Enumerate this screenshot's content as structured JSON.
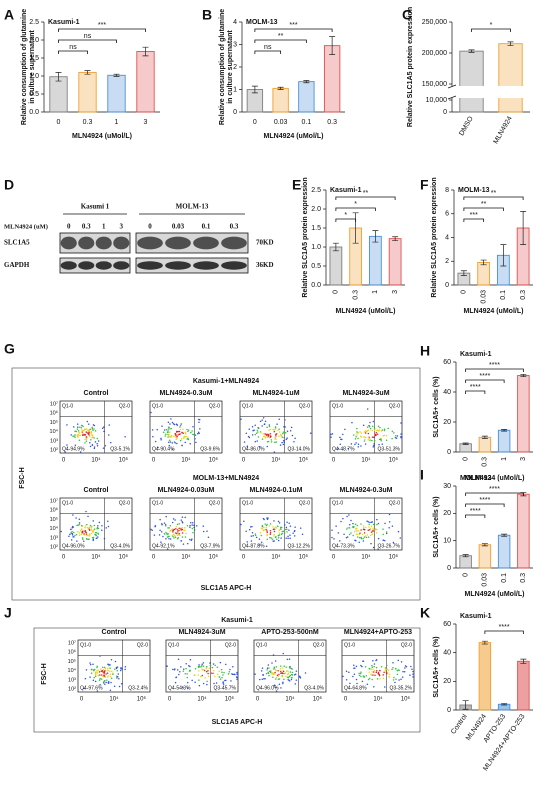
{
  "chart_data": [
    {
      "panel": "A",
      "type": "bar",
      "title": "Kasumi-1",
      "ylabel": [
        "Relative consumption of glutamine",
        "in culture supernatant"
      ],
      "xlabel": "MLN4924 (uMol/L)",
      "categories": [
        "0",
        "0.3",
        "1",
        "3"
      ],
      "values": [
        0.98,
        1.1,
        1.02,
        1.68
      ],
      "errors": [
        0.12,
        0.05,
        0.03,
        0.12
      ],
      "colors": [
        "#7f7f7f",
        "#f0a030",
        "#4a90d9",
        "#e05050"
      ],
      "ylim": [
        0,
        2.5
      ],
      "yticks": [
        {
          "value": 0,
          "label": "0.0"
        },
        0.5,
        {
          "value": 1,
          "label": "1.0"
        },
        1.5,
        {
          "value": 2,
          "label": "2.0"
        },
        2.5
      ],
      "significance": [
        "ns",
        "ns",
        "***"
      ]
    },
    {
      "panel": "B",
      "type": "bar",
      "title": "MOLM-13",
      "ylabel": [
        "Relative consumption of glutamine",
        "in culture supernatant"
      ],
      "xlabel": "MLN4924 (uMol/L)",
      "categories": [
        "0",
        "0.03",
        "0.1",
        "0.3"
      ],
      "values": [
        1.0,
        1.05,
        1.35,
        2.95
      ],
      "errors": [
        0.15,
        0.05,
        0.05,
        0.4
      ],
      "colors": [
        "#7f7f7f",
        "#f0a030",
        "#4a90d9",
        "#e05050"
      ],
      "ylim": [
        0,
        4
      ],
      "yticks": [
        0,
        1,
        2,
        3,
        4
      ],
      "significance": [
        "ns",
        "**",
        "***"
      ]
    },
    {
      "panel": "C",
      "type": "bar",
      "ylabel": "Relative SLC1A5 protein expression",
      "categories": [
        "DMSO",
        "MLN4924"
      ],
      "values": [
        203000,
        215000
      ],
      "errors": [
        2000,
        3000
      ],
      "colors": [
        "#7f7f7f",
        "#f0a030"
      ],
      "ylim": [
        150000,
        250000
      ],
      "yticks": [
        {
          "value": 150000,
          "label": "150,000"
        },
        {
          "value": 200000,
          "label": "200,000"
        },
        {
          "value": 250000,
          "label": "250,000"
        }
      ],
      "lower_ylim": [
        0,
        10000
      ],
      "lower_yticks": [
        0,
        {
          "value": 10000,
          "label": "10,000"
        }
      ],
      "significance": [
        "*"
      ]
    },
    {
      "panel": "E",
      "type": "bar",
      "title": "Kasumi-1",
      "ylabel": "Relative SLC1A5 protein expression",
      "xlabel": "MLN4924 (uMol/L)",
      "categories": [
        "0",
        "0.3",
        "1",
        "3"
      ],
      "values": [
        1.0,
        1.5,
        1.28,
        1.22
      ],
      "errors": [
        0.1,
        0.4,
        0.15,
        0.05
      ],
      "colors": [
        "#7f7f7f",
        "#f0a030",
        "#4a90d9",
        "#e05050"
      ],
      "ylim": [
        0,
        2.5
      ],
      "yticks": [
        {
          "value": 0,
          "label": "0.0"
        },
        0.5,
        {
          "value": 1,
          "label": "1.0"
        },
        1.5,
        {
          "value": 2,
          "label": "2.0"
        },
        2.5
      ],
      "significance": [
        "*",
        "*",
        "**"
      ]
    },
    {
      "panel": "F",
      "type": "bar",
      "title": "MOLM-13",
      "ylabel": "Relative SLC1A5 protein expression",
      "xlabel": "MLN4924 (uMol/L)",
      "categories": [
        "0",
        "0.03",
        "0.1",
        "0.3"
      ],
      "values": [
        1.0,
        1.9,
        2.5,
        4.8
      ],
      "errors": [
        0.2,
        0.2,
        0.9,
        1.4
      ],
      "colors": [
        "#7f7f7f",
        "#f0a030",
        "#4a90d9",
        "#e05050"
      ],
      "ylim": [
        0,
        8
      ],
      "yticks": [
        0,
        2,
        4,
        6,
        8
      ],
      "significance": [
        "***",
        "**",
        "**"
      ]
    },
    {
      "panel": "H",
      "type": "bar",
      "title": "Kasumi-1",
      "ylabel": "SLC1A5+ cells (%)",
      "xlabel": "MLN4924 (uMol/L)",
      "categories": [
        "0",
        "0.3",
        "1",
        "3"
      ],
      "values": [
        5.5,
        9.8,
        14.5,
        51
      ],
      "errors": [
        0.5,
        0.8,
        0.6,
        0.8
      ],
      "colors": [
        "#7f7f7f",
        "#f0a030",
        "#4a90d9",
        "#e05050"
      ],
      "ylim": [
        0,
        60
      ],
      "yticks": [
        0,
        20,
        40,
        60
      ],
      "significance": [
        "****",
        "****",
        "****"
      ]
    },
    {
      "panel": "I",
      "type": "bar",
      "title": "MOLM-13",
      "ylabel": "SLC1A5+ cells (%)",
      "xlabel": "MLN4924 (uMol/L)",
      "categories": [
        "0",
        "0.03",
        "0.1",
        "0.3"
      ],
      "values": [
        4.5,
        8.5,
        12,
        27
      ],
      "errors": [
        0.4,
        0.4,
        0.4,
        0.6
      ],
      "colors": [
        "#7f7f7f",
        "#f0a030",
        "#4a90d9",
        "#e05050"
      ],
      "ylim": [
        0,
        30
      ],
      "yticks": [
        0,
        10,
        20,
        30
      ],
      "significance": [
        "****",
        "****",
        "****"
      ]
    },
    {
      "panel": "K",
      "type": "bar",
      "title": "Kasumi-1",
      "ylabel": "SLC1A5+ cells (%)",
      "categories": [
        "Control",
        "MLN4924",
        "APTO-253",
        "MLN4924+APTO-253"
      ],
      "values": [
        3.5,
        47,
        4,
        34
      ],
      "errors": [
        3,
        1,
        0.5,
        1.5
      ],
      "colors": [
        "#7f7f7f",
        "#f0a030",
        "#4a90d9",
        "#e05050"
      ],
      "ylim": [
        0,
        60
      ],
      "yticks": [
        0,
        20,
        40,
        60
      ],
      "significance": [
        "****"
      ]
    }
  ],
  "blot": {
    "panel": "D",
    "treatment_label": "MLN4924 (uM)",
    "groups": [
      {
        "name": "Kasumi 1",
        "lanes": [
          "0",
          "0.3",
          "1",
          "3"
        ]
      },
      {
        "name": "MOLM-13",
        "lanes": [
          "0",
          "0.03",
          "0.1",
          "0.3"
        ]
      }
    ],
    "rows": [
      {
        "name": "SLC1A5",
        "size": "70KD"
      },
      {
        "name": "GAPDH",
        "size": "36KD"
      }
    ]
  },
  "flow": [
    {
      "panel": "G",
      "ylabel": "FSC-H",
      "xlabel": "SLC1A5 APC-H",
      "xticks": [
        "0",
        "10⁴",
        "10⁶"
      ],
      "yticks": [
        "10⁷",
        "10⁶",
        "10⁵",
        "10⁴",
        "10³",
        "10²"
      ],
      "blocks": [
        {
          "title": "Kasumi-1+MLN4924",
          "plots": [
            {
              "name": "Control",
              "q1": "Q1-0",
              "q2": "Q2-0",
              "q4": "Q4-94.9%",
              "q3": "Q3-5.1%"
            },
            {
              "name": "MLN4924-0.3uM",
              "q1": "Q1-0",
              "q2": "Q2-0",
              "q4": "Q4-90.4%",
              "q3": "Q3-9.6%"
            },
            {
              "name": "MLN4924-1uM",
              "q1": "Q1-0",
              "q2": "Q2-0",
              "q4": "Q4-86.0%",
              "q3": "Q3-14.0%"
            },
            {
              "name": "MLN4924-3uM",
              "q1": "Q1-0",
              "q2": "Q2-0",
              "q4": "Q4-48.7%",
              "q3": "Q3-51.3%"
            }
          ]
        },
        {
          "title": "MOLM-13+MLN4924",
          "plots": [
            {
              "name": "Control",
              "q1": "Q1-0",
              "q2": "Q2-0",
              "q4": "Q4-96.0%",
              "q3": "Q3-4.0%"
            },
            {
              "name": "MLN4924-0.03uM",
              "q1": "Q1-0",
              "q2": "Q2-0",
              "q4": "Q4-92.1%",
              "q3": "Q3-7.9%"
            },
            {
              "name": "MLN4924-0.1uM",
              "q1": "Q1-0",
              "q2": "Q2-0",
              "q4": "Q4-87.8%",
              "q3": "Q3-12.2%"
            },
            {
              "name": "MLN4924-0.3uM",
              "q1": "Q1-0",
              "q2": "Q2-0",
              "q4": "Q4-73.3%",
              "q3": "Q3-26.7%"
            }
          ]
        }
      ]
    },
    {
      "panel": "J",
      "ylabel": "FSC-H",
      "xlabel": "SLC1A5 APC-H",
      "xticks": [
        "0",
        "10⁴",
        "10⁶"
      ],
      "yticks": [
        "10⁷",
        "10⁶",
        "10⁵",
        "10⁴",
        "10³",
        "10²"
      ],
      "blocks": [
        {
          "title": "Kasumi-1",
          "plots": [
            {
              "name": "Control",
              "q1": "Q1-0",
              "q2": "Q2-0",
              "q4": "Q4-97.6%",
              "q3": "Q3-2.4%"
            },
            {
              "name": "MLN4924-3uM",
              "q1": "Q1-0",
              "q2": "Q2-0",
              "q4": "Q4-54.3%",
              "q3": "Q3-45.7%"
            },
            {
              "name": "APTO-253-500nM",
              "q1": "Q1-0",
              "q2": "Q2-0",
              "q4": "Q4-96.0%",
              "q3": "Q3-4.0%"
            },
            {
              "name": "MLN4924+APTO-253",
              "q1": "Q1-0",
              "q2": "Q2-0",
              "q4": "Q4-64.8%",
              "q3": "Q3-35.2%"
            }
          ]
        }
      ]
    }
  ]
}
